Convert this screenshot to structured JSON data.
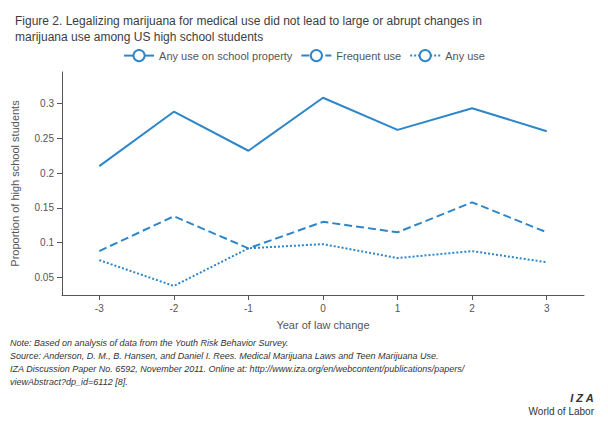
{
  "chart_data": {
    "type": "line",
    "title": "Figure 2. Legalizing marijuana for medical use did not lead to large or abrupt changes in\nmarijuana use among US high school students",
    "xlabel": "Year of law change",
    "ylabel": "Proportion of high school students",
    "x": [
      -3,
      -2,
      -1,
      0,
      1,
      2,
      3
    ],
    "series": [
      {
        "name": "Any use on school property",
        "color": "#2e86c8",
        "line_style": "solid",
        "values": [
          0.21,
          0.288,
          0.232,
          0.308,
          0.262,
          0.293,
          0.26
        ]
      },
      {
        "name": "Frequent use",
        "color": "#2e86c8",
        "line_style": "dashed",
        "values": [
          0.088,
          0.138,
          0.092,
          0.13,
          0.115,
          0.158,
          0.115
        ]
      },
      {
        "name": "Any use",
        "color": "#2e86c8",
        "line_style": "dotted",
        "values": [
          0.075,
          0.038,
          0.092,
          0.098,
          0.078,
          0.088,
          0.072
        ]
      }
    ],
    "xlim": [
      -3.5,
      3.5
    ],
    "xticks": [
      -3,
      -2,
      -1,
      0,
      1,
      2,
      3
    ],
    "ylim": [
      0.025,
      0.345
    ],
    "yticks": [
      0.05,
      0.1,
      0.15,
      0.2,
      0.25,
      0.3
    ],
    "grid": false,
    "legend": "top",
    "annotations": [
      "Note: Based on analysis of data from the Youth Risk Behavior Survey.",
      "Source: Anderson, D. M., B. Hansen, and Daniel I. Rees. Medical Marijuana Laws and Teen Marijuana Use.",
      "IZA Discussion Paper No. 6592, November 2011. Online at: http://www.iza.org/en/webcontent/publications/papers/",
      "viewAbstract?dp_id=6112 [8].",
      "I Z A",
      "World of Labor"
    ]
  }
}
